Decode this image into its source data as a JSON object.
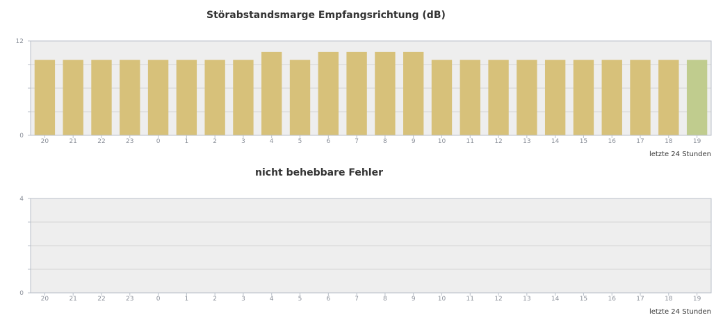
{
  "colors": {
    "plot_background": "#eeeeee",
    "bar": "#d7c17a",
    "bar_current": "#c0cc8e",
    "grid": "#d4d4d4",
    "axis": "#b8bfc8"
  },
  "chart_data": [
    {
      "type": "bar",
      "title": "Störabstandsmarge Empfangsrichtung (dB)",
      "categories": [
        "20",
        "21",
        "22",
        "23",
        "0",
        "1",
        "2",
        "3",
        "4",
        "5",
        "6",
        "7",
        "8",
        "9",
        "10",
        "11",
        "12",
        "13",
        "14",
        "15",
        "16",
        "17",
        "18",
        "19"
      ],
      "series": [
        {
          "values": [
            9.6,
            9.6,
            9.6,
            9.6,
            9.6,
            9.6,
            9.6,
            9.6,
            10.6,
            9.6,
            10.6,
            10.6,
            10.6,
            10.6,
            9.6,
            9.6,
            9.6,
            9.6,
            9.6,
            9.6,
            9.6,
            9.6,
            9.6,
            9.6
          ]
        }
      ],
      "highlight_last": true,
      "ylim": [
        0,
        12
      ],
      "y_tick_labels": [
        "0",
        "12"
      ],
      "grid": true,
      "xlabel": "letzte 24 Stunden"
    },
    {
      "type": "bar",
      "title": "nicht behebbare Fehler",
      "categories": [
        "20",
        "21",
        "22",
        "23",
        "0",
        "1",
        "2",
        "3",
        "4",
        "5",
        "6",
        "7",
        "8",
        "9",
        "10",
        "11",
        "12",
        "13",
        "14",
        "15",
        "16",
        "17",
        "18",
        "19"
      ],
      "series": [
        {
          "values": [
            0,
            0,
            0,
            0,
            0,
            0,
            0,
            0,
            0,
            0,
            0,
            0,
            0,
            0,
            0,
            0,
            0,
            0,
            0,
            0,
            0,
            0,
            0,
            0
          ]
        }
      ],
      "highlight_last": false,
      "ylim": [
        0,
        4
      ],
      "y_tick_labels": [
        "0",
        "4"
      ],
      "grid": true,
      "xlabel": "letzte 24 Stunden"
    }
  ]
}
